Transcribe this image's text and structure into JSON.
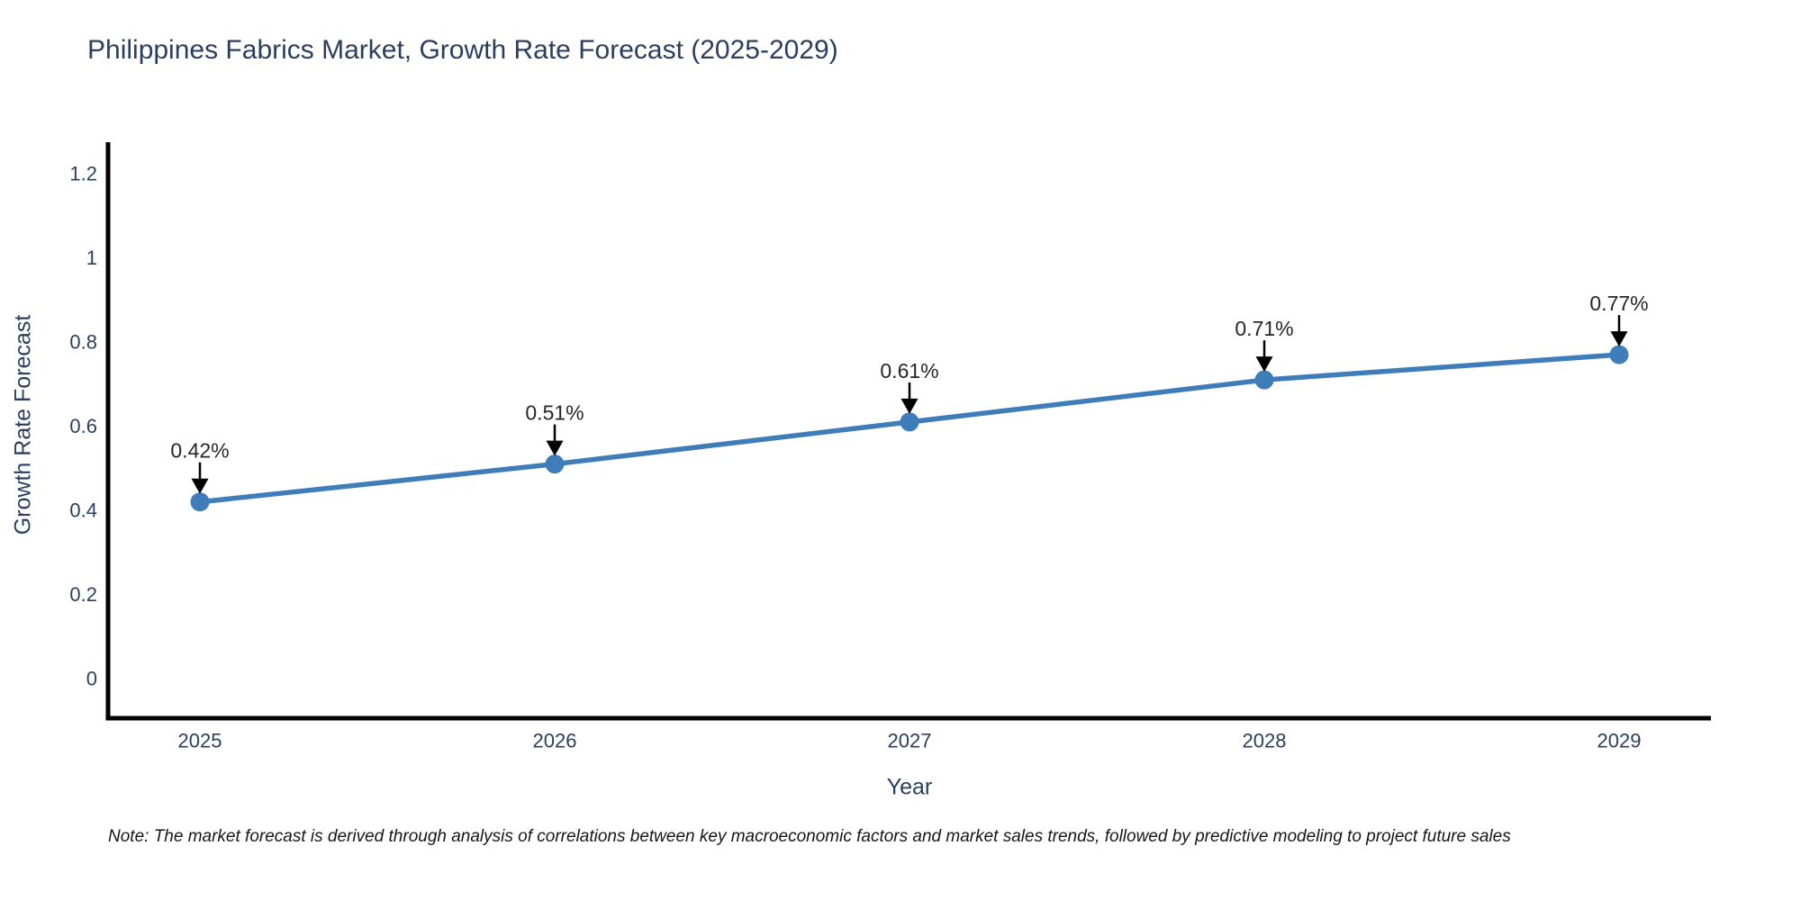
{
  "chart_data": {
    "type": "line",
    "title": "Philippines Fabrics Market, Growth Rate Forecast (2025-2029)",
    "xlabel": "Year",
    "ylabel": "Growth Rate Forecast",
    "categories": [
      "2025",
      "2026",
      "2027",
      "2028",
      "2029"
    ],
    "values": [
      0.42,
      0.51,
      0.61,
      0.71,
      0.77
    ],
    "point_labels": [
      "0.42%",
      "0.51%",
      "0.61%",
      "0.71%",
      "0.77%"
    ],
    "y_tick_labels": [
      "0",
      "0.2",
      "0.4",
      "0.6",
      "0.8",
      "1",
      "1.2"
    ],
    "ylim": [
      -0.094,
      1.275
    ],
    "grid": false,
    "legend": "none",
    "line_color": "#3e7cba",
    "marker_color": "#3e7cba",
    "axis_color": "#000000",
    "arrow_color": "#000000",
    "title_color": "#2c3e5d",
    "tick_color": "#2a3f5f",
    "annotation_text_color": "#262626"
  },
  "note": {
    "text": "Note: The market forecast is derived through analysis of correlations between key macroeconomic factors and market sales trends, followed by predictive modeling to project future sales"
  }
}
